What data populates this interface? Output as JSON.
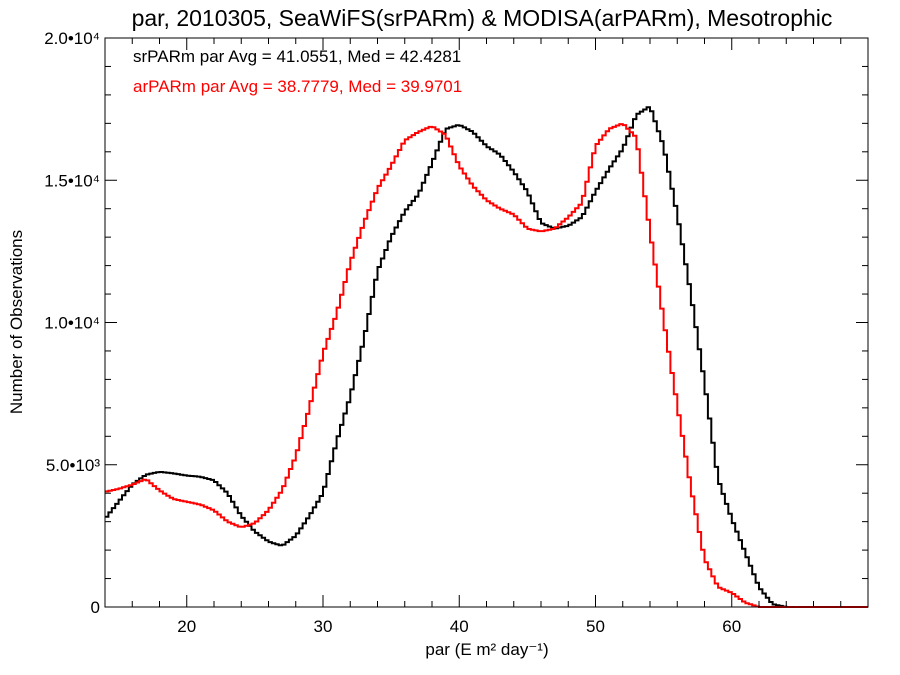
{
  "chart_data": {
    "type": "line",
    "title": "par, 2010305, SeaWiFS(srPARm) & MODISA(arPARm), Mesotrophic",
    "xlabel": "par (E m² day⁻¹)",
    "ylabel": "Number of Observations",
    "xlim": [
      14,
      70
    ],
    "ylim": [
      0,
      20000
    ],
    "x_ticks": [
      {
        "value": 20,
        "label": "20"
      },
      {
        "value": 30,
        "label": "30"
      },
      {
        "value": 40,
        "label": "40"
      },
      {
        "value": 50,
        "label": "50"
      },
      {
        "value": 60,
        "label": "60"
      }
    ],
    "y_ticks": [
      {
        "value": 0,
        "label": "0"
      },
      {
        "value": 5000,
        "label": "5.0•10³"
      },
      {
        "value": 10000,
        "label": "1.0•10⁴"
      },
      {
        "value": 15000,
        "label": "1.5•10⁴"
      },
      {
        "value": 20000,
        "label": "2.0•10⁴"
      }
    ],
    "annotations": [
      {
        "text": "srPARm par Avg = 41.0551, Med = 42.4281",
        "color": "#000000"
      },
      {
        "text": "arPARm par Avg = 38.7779, Med = 39.9701",
        "color": "#ff0000"
      }
    ],
    "series": [
      {
        "color": "#000000",
        "points": [
          [
            14,
            3100
          ],
          [
            15,
            3700
          ],
          [
            16,
            4300
          ],
          [
            17,
            4650
          ],
          [
            18,
            4750
          ],
          [
            19,
            4700
          ],
          [
            20,
            4620
          ],
          [
            21,
            4580
          ],
          [
            22,
            4450
          ],
          [
            23,
            4000
          ],
          [
            24,
            3200
          ],
          [
            25,
            2650
          ],
          [
            26,
            2300
          ],
          [
            27,
            2150
          ],
          [
            28,
            2500
          ],
          [
            29,
            3200
          ],
          [
            30,
            4000
          ],
          [
            31,
            5800
          ],
          [
            32,
            7400
          ],
          [
            33,
            9400
          ],
          [
            34,
            11800
          ],
          [
            35,
            13000
          ],
          [
            36,
            13900
          ],
          [
            37,
            14500
          ],
          [
            38,
            15600
          ],
          [
            39,
            16800
          ],
          [
            40,
            16950
          ],
          [
            41,
            16700
          ],
          [
            42,
            16200
          ],
          [
            43,
            15900
          ],
          [
            44,
            15300
          ],
          [
            45,
            14600
          ],
          [
            46,
            13500
          ],
          [
            47,
            13300
          ],
          [
            48,
            13400
          ],
          [
            49,
            13700
          ],
          [
            50,
            14600
          ],
          [
            51,
            15400
          ],
          [
            52,
            16100
          ],
          [
            53,
            17300
          ],
          [
            54,
            17600
          ],
          [
            55,
            16200
          ],
          [
            56,
            13800
          ],
          [
            57,
            11000
          ],
          [
            58,
            7900
          ],
          [
            59,
            4500
          ],
          [
            60,
            3100
          ],
          [
            61,
            1900
          ],
          [
            62,
            700
          ],
          [
            63,
            100
          ],
          [
            64,
            0
          ],
          [
            70,
            0
          ]
        ]
      },
      {
        "color": "#ff0000",
        "points": [
          [
            14,
            4050
          ],
          [
            15,
            4150
          ],
          [
            16,
            4300
          ],
          [
            17,
            4500
          ],
          [
            18,
            4100
          ],
          [
            19,
            3800
          ],
          [
            20,
            3700
          ],
          [
            21,
            3600
          ],
          [
            22,
            3400
          ],
          [
            23,
            3000
          ],
          [
            24,
            2800
          ],
          [
            25,
            2950
          ],
          [
            26,
            3400
          ],
          [
            27,
            4100
          ],
          [
            28,
            5300
          ],
          [
            29,
            7000
          ],
          [
            30,
            8900
          ],
          [
            31,
            10300
          ],
          [
            32,
            12100
          ],
          [
            33,
            13500
          ],
          [
            34,
            14700
          ],
          [
            35,
            15500
          ],
          [
            36,
            16400
          ],
          [
            37,
            16700
          ],
          [
            38,
            16900
          ],
          [
            39,
            16600
          ],
          [
            40,
            15500
          ],
          [
            41,
            14800
          ],
          [
            42,
            14300
          ],
          [
            43,
            14000
          ],
          [
            44,
            13800
          ],
          [
            45,
            13300
          ],
          [
            46,
            13200
          ],
          [
            47,
            13300
          ],
          [
            48,
            13700
          ],
          [
            49,
            14200
          ],
          [
            50,
            16200
          ],
          [
            51,
            16800
          ],
          [
            52,
            17000
          ],
          [
            53,
            16500
          ],
          [
            54,
            13200
          ],
          [
            55,
            10100
          ],
          [
            56,
            7100
          ],
          [
            57,
            4200
          ],
          [
            58,
            1700
          ],
          [
            59,
            700
          ],
          [
            60,
            500
          ],
          [
            61,
            150
          ],
          [
            62,
            0
          ],
          [
            70,
            0
          ]
        ]
      }
    ]
  }
}
